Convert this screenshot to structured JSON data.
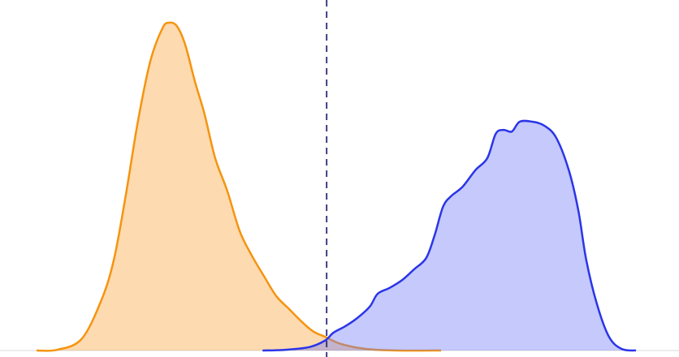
{
  "chart_data": {
    "type": "area",
    "xlim": [
      0,
      100
    ],
    "ylim": [
      0,
      100
    ],
    "vline": 48.4,
    "vline_color": "#2b2a7a",
    "series": [
      {
        "color": "#f5940f",
        "fill": "#f9a23a",
        "x": [
          0,
          3.4,
          7.5,
          10.8,
          12.9,
          14.9,
          16.9,
          19,
          21,
          22.1,
          23.4,
          24.8,
          26.4,
          28,
          29.8,
          31.8,
          33.9,
          35.9,
          37.9,
          40,
          42,
          44,
          46.1,
          48.1,
          50.8,
          54.9,
          60.3,
          67.5
        ],
        "values": [
          0,
          0.2,
          3.5,
          15.3,
          27.7,
          47.5,
          69.8,
          88.4,
          98.3,
          100,
          99,
          93.3,
          82.2,
          72.3,
          58.7,
          48.8,
          36.4,
          29,
          22.8,
          16.6,
          12.9,
          9.2,
          5.9,
          4.2,
          2,
          0.5,
          0,
          0
        ]
      },
      {
        "color": "#2b35e8",
        "fill": "#6f78f5",
        "x": [
          37.7,
          41.3,
          45.4,
          48.1,
          49.5,
          51.5,
          53.5,
          55.6,
          56.9,
          58.9,
          61,
          63,
          65,
          66.4,
          67.8,
          69.1,
          71.1,
          73.2,
          75.2,
          76.6,
          77.9,
          79.3,
          80.6,
          82.7,
          84.7,
          86.7,
          88.8,
          90.4,
          91.7,
          93.5,
          95.5,
          97.6,
          100
        ],
        "values": [
          0,
          0.2,
          1,
          3,
          5.4,
          7.4,
          9.9,
          13.4,
          17.3,
          19.1,
          21.5,
          24.8,
          28.2,
          35.1,
          43.8,
          47,
          50,
          55,
          58.7,
          66.1,
          67.3,
          66.8,
          69.8,
          69.8,
          68.6,
          64.9,
          55,
          42.6,
          27.7,
          14.1,
          4.2,
          0.5,
          0
        ]
      }
    ]
  }
}
